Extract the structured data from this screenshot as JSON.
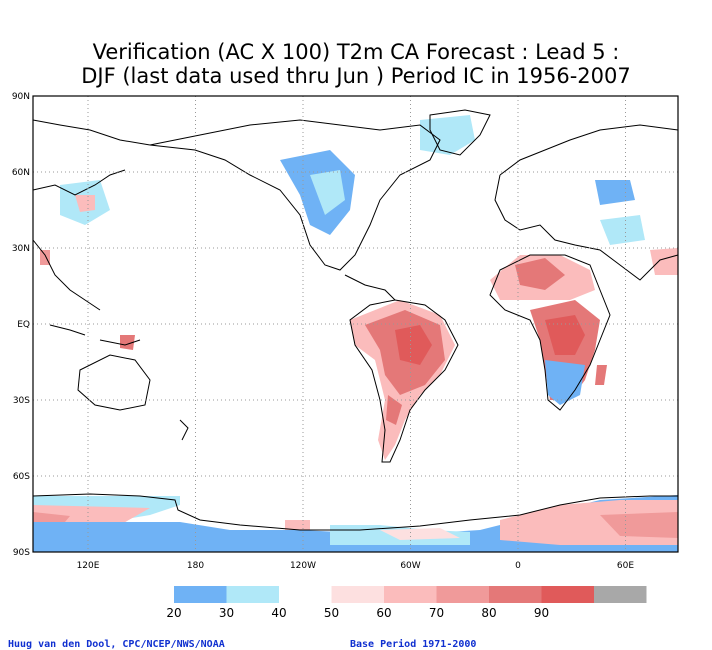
{
  "title": {
    "line1": "Verification (AC X 100) T2m CA Forecast : Lead 5 :",
    "line2": "DJF (last data used thru Jun ) Period IC in 1956-2007"
  },
  "map": {
    "lat_labels": [
      "90N",
      "60N",
      "30N",
      "EQ",
      "30S",
      "60S",
      "90S"
    ],
    "lon_labels": [
      "120E",
      "180",
      "120W",
      "60W",
      "0",
      "60E"
    ],
    "grid": "dotted"
  },
  "colorbar": {
    "labels": [
      "20",
      "30",
      "40",
      "50",
      "60",
      "70",
      "80",
      "90"
    ],
    "colors": [
      "#6fb2f5",
      "#b0e8f8",
      "#ffffff",
      "#fde0e0",
      "#fbbcbc",
      "#f09a9a",
      "#e47878",
      "#e05a5a",
      "#a8a8a8"
    ]
  },
  "footer": {
    "credit": "Huug van den Dool, CPC/NCEP/NWS/NOAA",
    "base_period": "Base Period 1971-2000"
  }
}
